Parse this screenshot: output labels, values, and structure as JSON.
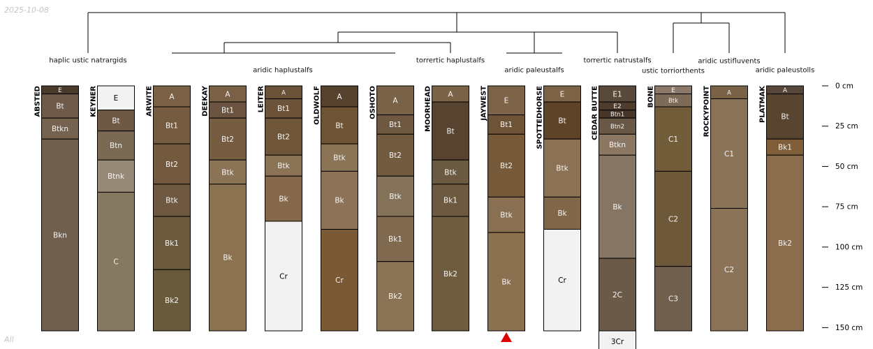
{
  "date_stamp": "2025-10-08",
  "footer_note": "All",
  "depth_axis": {
    "unit": "cm",
    "max_depth": 152,
    "ticks": [
      {
        "value": 0,
        "label": "0 cm"
      },
      {
        "value": 25,
        "label": "25 cm"
      },
      {
        "value": 50,
        "label": "50 cm"
      },
      {
        "value": 75,
        "label": "75 cm"
      },
      {
        "value": 100,
        "label": "100 cm"
      },
      {
        "value": 125,
        "label": "125 cm"
      },
      {
        "value": 150,
        "label": "150 cm"
      }
    ]
  },
  "group_labels": [
    "haplic ustic natrargids",
    "aridic haplustalfs",
    "torrertic haplustalfs",
    "aridic paleustalfs",
    "torrertic natrustalfs",
    "ustic torriorthents",
    "aridic ustifluvents",
    "aridic paleustolls"
  ],
  "marker": {
    "profile": "JAYWEST",
    "color": "#e00000"
  },
  "profiles": [
    {
      "name": "ABSTED",
      "horizons": [
        {
          "name": "E",
          "top": 0,
          "bottom": 5,
          "color": "#4a3a2c"
        },
        {
          "name": "Bt",
          "top": 5,
          "bottom": 20,
          "color": "#6e5a48"
        },
        {
          "name": "Btkn",
          "top": 20,
          "bottom": 33,
          "color": "#75624f"
        },
        {
          "name": "Bkn",
          "top": 33,
          "bottom": 152,
          "color": "#6f5f4c"
        }
      ]
    },
    {
      "name": "KEYNER",
      "horizons": [
        {
          "name": "E",
          "top": 0,
          "bottom": 15,
          "color": "#f2f2f2"
        },
        {
          "name": "Bt",
          "top": 15,
          "bottom": 28,
          "color": "#6e5a44"
        },
        {
          "name": "Btn",
          "top": 28,
          "bottom": 46,
          "color": "#7a6a54"
        },
        {
          "name": "Btnk",
          "top": 46,
          "bottom": 66,
          "color": "#988a78"
        },
        {
          "name": "C",
          "top": 66,
          "bottom": 152,
          "color": "#857962"
        }
      ]
    },
    {
      "name": "ARWITE",
      "horizons": [
        {
          "name": "A",
          "top": 0,
          "bottom": 13,
          "color": "#7a6045"
        },
        {
          "name": "Bt1",
          "top": 13,
          "bottom": 36,
          "color": "#755b3f"
        },
        {
          "name": "Bt2",
          "top": 36,
          "bottom": 61,
          "color": "#735a3e"
        },
        {
          "name": "Btk",
          "top": 61,
          "bottom": 81,
          "color": "#6e5940"
        },
        {
          "name": "Bk1",
          "top": 81,
          "bottom": 114,
          "color": "#6b5a3e"
        },
        {
          "name": "Bk2",
          "top": 114,
          "bottom": 152,
          "color": "#6a5a3c"
        }
      ]
    },
    {
      "name": "DEEKAY",
      "horizons": [
        {
          "name": "A",
          "top": 0,
          "bottom": 10,
          "color": "#7a6045"
        },
        {
          "name": "Bt1",
          "top": 10,
          "bottom": 20,
          "color": "#6a5440"
        },
        {
          "name": "Bt2",
          "top": 20,
          "bottom": 46,
          "color": "#765c40"
        },
        {
          "name": "Btk",
          "top": 46,
          "bottom": 61,
          "color": "#8b7355"
        },
        {
          "name": "Bk",
          "top": 61,
          "bottom": 152,
          "color": "#8b7352"
        }
      ]
    },
    {
      "name": "LEITER",
      "horizons": [
        {
          "name": "A",
          "top": 0,
          "bottom": 8,
          "color": "#6a5238"
        },
        {
          "name": "Bt1",
          "top": 8,
          "bottom": 20,
          "color": "#6b5238"
        },
        {
          "name": "Bt2",
          "top": 20,
          "bottom": 43,
          "color": "#705639"
        },
        {
          "name": "Btk",
          "top": 43,
          "bottom": 56,
          "color": "#8b7356"
        },
        {
          "name": "Bk",
          "top": 56,
          "bottom": 84,
          "color": "#86694a"
        },
        {
          "name": "Cr",
          "top": 84,
          "bottom": 152,
          "color": "#f2f2f2"
        }
      ]
    },
    {
      "name": "OLDWOLF",
      "horizons": [
        {
          "name": "A",
          "top": 0,
          "bottom": 13,
          "color": "#55412e"
        },
        {
          "name": "Bt",
          "top": 13,
          "bottom": 36,
          "color": "#6f5335"
        },
        {
          "name": "Btk",
          "top": 36,
          "bottom": 53,
          "color": "#8b7356"
        },
        {
          "name": "Bk",
          "top": 53,
          "bottom": 89,
          "color": "#8c7357"
        },
        {
          "name": "Cr",
          "top": 89,
          "bottom": 152,
          "color": "#7a5a35"
        }
      ]
    },
    {
      "name": "OSHOTO",
      "horizons": [
        {
          "name": "A",
          "top": 0,
          "bottom": 18,
          "color": "#7a6248"
        },
        {
          "name": "Bt1",
          "top": 18,
          "bottom": 30,
          "color": "#6e5840"
        },
        {
          "name": "Bt2",
          "top": 30,
          "bottom": 56,
          "color": "#735b40"
        },
        {
          "name": "Btk",
          "top": 56,
          "bottom": 81,
          "color": "#857359"
        },
        {
          "name": "Bk1",
          "top": 81,
          "bottom": 109,
          "color": "#7f6a50"
        },
        {
          "name": "Bk2",
          "top": 109,
          "bottom": 152,
          "color": "#8b7455"
        }
      ]
    },
    {
      "name": "MOORHEAD",
      "horizons": [
        {
          "name": "A",
          "top": 0,
          "bottom": 10,
          "color": "#7a6246"
        },
        {
          "name": "Bt",
          "top": 10,
          "bottom": 46,
          "color": "#57432f"
        },
        {
          "name": "Btk",
          "top": 46,
          "bottom": 61,
          "color": "#6b5a42"
        },
        {
          "name": "Bk1",
          "top": 61,
          "bottom": 81,
          "color": "#6d5940"
        },
        {
          "name": "Bk2",
          "top": 81,
          "bottom": 152,
          "color": "#6f5c3e"
        }
      ]
    },
    {
      "name": "JAYWEST",
      "horizons": [
        {
          "name": "E",
          "top": 0,
          "bottom": 18,
          "color": "#7d6348"
        },
        {
          "name": "Bt1",
          "top": 18,
          "bottom": 30,
          "color": "#6e5337"
        },
        {
          "name": "Bt2",
          "top": 30,
          "bottom": 69,
          "color": "#765a39"
        },
        {
          "name": "Btk",
          "top": 69,
          "bottom": 91,
          "color": "#8a7052"
        },
        {
          "name": "Bk",
          "top": 91,
          "bottom": 152,
          "color": "#8b7150"
        }
      ]
    },
    {
      "name": "SPOTTEDHORSE",
      "horizons": [
        {
          "name": "E",
          "top": 0,
          "bottom": 10,
          "color": "#7d6346"
        },
        {
          "name": "Bt",
          "top": 10,
          "bottom": 33,
          "color": "#5e4329"
        },
        {
          "name": "Btk",
          "top": 33,
          "bottom": 69,
          "color": "#8b7255"
        },
        {
          "name": "Bk",
          "top": 69,
          "bottom": 89,
          "color": "#7f6748"
        },
        {
          "name": "Cr",
          "top": 89,
          "bottom": 152,
          "color": "#f2f2f2"
        }
      ]
    },
    {
      "name": "CEDAR BUTTE",
      "horizons": [
        {
          "name": "E1",
          "top": 0,
          "bottom": 10,
          "color": "#58493a"
        },
        {
          "name": "E2",
          "top": 10,
          "bottom": 15,
          "color": "#4e3d2e"
        },
        {
          "name": "Btn1",
          "top": 15,
          "bottom": 20,
          "color": "#463628"
        },
        {
          "name": "Btn2",
          "top": 20,
          "bottom": 30,
          "color": "#6a5846"
        },
        {
          "name": "Btkn",
          "top": 30,
          "bottom": 43,
          "color": "#8b7762"
        },
        {
          "name": "Bk",
          "top": 43,
          "bottom": 107,
          "color": "#857562"
        },
        {
          "name": "2C",
          "top": 107,
          "bottom": 152,
          "color": "#6b5a48"
        },
        {
          "name": "3Cr",
          "top": 152,
          "bottom": 165,
          "color": "#f2f2f2"
        }
      ]
    },
    {
      "name": "BONE",
      "horizons": [
        {
          "name": "E",
          "top": 0,
          "bottom": 5,
          "color": "#8c7868"
        },
        {
          "name": "Btk",
          "top": 5,
          "bottom": 13,
          "color": "#7d6a57"
        },
        {
          "name": "C1",
          "top": 13,
          "bottom": 53,
          "color": "#725d3b"
        },
        {
          "name": "C2",
          "top": 53,
          "bottom": 112,
          "color": "#6e583a"
        },
        {
          "name": "C3",
          "top": 112,
          "bottom": 152,
          "color": "#6f5f4c"
        }
      ]
    },
    {
      "name": "ROCKYPOINT",
      "horizons": [
        {
          "name": "A",
          "top": 0,
          "bottom": 8,
          "color": "#7a6246"
        },
        {
          "name": "C1",
          "top": 8,
          "bottom": 76,
          "color": "#8b7358"
        },
        {
          "name": "C2",
          "top": 76,
          "bottom": 152,
          "color": "#8a7357"
        }
      ]
    },
    {
      "name": "PLATMAK",
      "horizons": [
        {
          "name": "A",
          "top": 0,
          "bottom": 5,
          "color": "#57473a"
        },
        {
          "name": "Bt",
          "top": 5,
          "bottom": 33,
          "color": "#574530"
        },
        {
          "name": "Bk1",
          "top": 33,
          "bottom": 43,
          "color": "#805e3a"
        },
        {
          "name": "Bk2",
          "top": 43,
          "bottom": 152,
          "color": "#8b6c4c"
        }
      ]
    }
  ]
}
